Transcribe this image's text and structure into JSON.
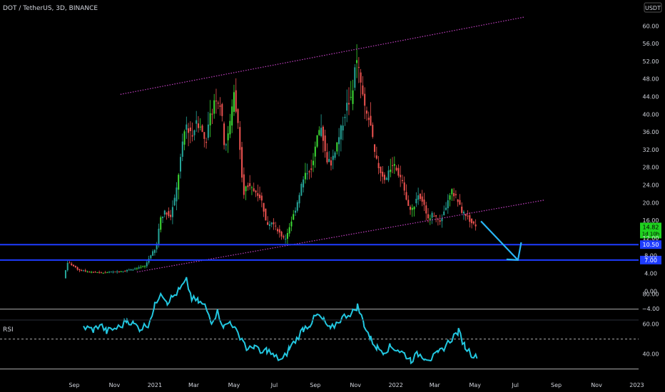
{
  "header": {
    "symbol_title": "DOT / TetherUS, 3D, BINANCE",
    "currency": "USDT"
  },
  "rsi_label": "RSI",
  "colors": {
    "background": "#000000",
    "up": "#26a69a",
    "up_bright": "#3ddc35",
    "down": "#ef5350",
    "channel": "#c040c0",
    "horizontal": "#1e3cff",
    "arrow": "#29b6f6",
    "rsi": "#22c7e0",
    "rsi_band": "#cfcfcf",
    "axis_text": "#d1d4dc"
  },
  "chart_data": {
    "type": "candlestick",
    "symbol": "DOT / TetherUS",
    "interval": "3D",
    "exchange": "BINANCE",
    "price_axis": {
      "range": [
        -6,
        64
      ],
      "ticks": [
        -4,
        0,
        4,
        8,
        12,
        16,
        20,
        24,
        28,
        32,
        36,
        40,
        44,
        48,
        52,
        56,
        60
      ],
      "tick_labels": [
        "−4.00",
        "0.00",
        "4.00",
        "8.00",
        "12.00",
        "16.00",
        "20.00",
        "24.00",
        "28.00",
        "32.00",
        "36.00",
        "40.00",
        "44.00",
        "48.00",
        "52.00",
        "56.00",
        "60.00"
      ]
    },
    "time_axis": {
      "start": "2020-08-19",
      "end": "2023-01-01",
      "ticks": [
        {
          "date": "2020-09-01",
          "label": "Sep"
        },
        {
          "date": "2020-11-01",
          "label": "Nov"
        },
        {
          "date": "2021-01-01",
          "label": "2021"
        },
        {
          "date": "2021-03-01",
          "label": "Mar"
        },
        {
          "date": "2021-05-01",
          "label": "May"
        },
        {
          "date": "2021-07-01",
          "label": "Jul"
        },
        {
          "date": "2021-09-01",
          "label": "Sep"
        },
        {
          "date": "2021-11-01",
          "label": "Nov"
        },
        {
          "date": "2022-01-01",
          "label": "2022"
        },
        {
          "date": "2022-03-01",
          "label": "Mar"
        },
        {
          "date": "2022-05-01",
          "label": "May"
        },
        {
          "date": "2022-07-01",
          "label": "Jul"
        },
        {
          "date": "2022-09-01",
          "label": "Sep"
        },
        {
          "date": "2022-11-01",
          "label": "Nov"
        },
        {
          "date": "2023-01-01",
          "label": "2023"
        }
      ]
    },
    "price_path": [
      [
        "2020-08-19",
        2.9
      ],
      [
        "2020-08-25",
        6.5
      ],
      [
        "2020-09-01",
        5.8
      ],
      [
        "2020-09-10",
        4.8
      ],
      [
        "2020-09-25",
        4.4
      ],
      [
        "2020-10-15",
        4.1
      ],
      [
        "2020-11-01",
        4.3
      ],
      [
        "2020-11-20",
        4.6
      ],
      [
        "2020-12-05",
        5.0
      ],
      [
        "2020-12-20",
        5.6
      ],
      [
        "2020-12-30",
        8.5
      ],
      [
        "2021-01-06",
        9.5
      ],
      [
        "2021-01-12",
        16.5
      ],
      [
        "2021-01-20",
        18.0
      ],
      [
        "2021-01-28",
        17.0
      ],
      [
        "2021-02-05",
        22.0
      ],
      [
        "2021-02-12",
        30.0
      ],
      [
        "2021-02-20",
        38.0
      ],
      [
        "2021-02-28",
        35.0
      ],
      [
        "2021-03-08",
        38.0
      ],
      [
        "2021-03-15",
        37.0
      ],
      [
        "2021-03-22",
        33.5
      ],
      [
        "2021-03-30",
        40.0
      ],
      [
        "2021-04-06",
        44.0
      ],
      [
        "2021-04-14",
        42.0
      ],
      [
        "2021-04-20",
        32.0
      ],
      [
        "2021-04-28",
        38.0
      ],
      [
        "2021-05-04",
        45.0
      ],
      [
        "2021-05-12",
        35.0
      ],
      [
        "2021-05-18",
        22.0
      ],
      [
        "2021-05-24",
        24.0
      ],
      [
        "2021-06-01",
        23.0
      ],
      [
        "2021-06-10",
        22.0
      ],
      [
        "2021-06-16",
        20.0
      ],
      [
        "2021-06-22",
        15.0
      ],
      [
        "2021-06-30",
        15.5
      ],
      [
        "2021-07-08",
        14.0
      ],
      [
        "2021-07-20",
        11.5
      ],
      [
        "2021-07-28",
        15.0
      ],
      [
        "2021-08-06",
        19.0
      ],
      [
        "2021-08-14",
        24.0
      ],
      [
        "2021-08-22",
        27.0
      ],
      [
        "2021-08-30",
        28.0
      ],
      [
        "2021-09-06",
        34.0
      ],
      [
        "2021-09-14",
        37.0
      ],
      [
        "2021-09-20",
        30.0
      ],
      [
        "2021-09-28",
        29.0
      ],
      [
        "2021-10-06",
        33.0
      ],
      [
        "2021-10-14",
        37.0
      ],
      [
        "2021-10-22",
        42.0
      ],
      [
        "2021-10-30",
        44.0
      ],
      [
        "2021-11-04",
        53.0
      ],
      [
        "2021-11-10",
        49.0
      ],
      [
        "2021-11-18",
        41.0
      ],
      [
        "2021-11-26",
        38.0
      ],
      [
        "2021-12-04",
        30.0
      ],
      [
        "2021-12-12",
        27.0
      ],
      [
        "2021-12-20",
        25.0
      ],
      [
        "2021-12-30",
        29.0
      ],
      [
        "2022-01-06",
        27.0
      ],
      [
        "2022-01-14",
        25.0
      ],
      [
        "2022-01-22",
        19.0
      ],
      [
        "2022-01-30",
        18.5
      ],
      [
        "2022-02-06",
        22.0
      ],
      [
        "2022-02-14",
        20.0
      ],
      [
        "2022-02-22",
        16.5
      ],
      [
        "2022-03-02",
        17.5
      ],
      [
        "2022-03-12",
        15.5
      ],
      [
        "2022-03-22",
        19.5
      ],
      [
        "2022-03-30",
        22.5
      ],
      [
        "2022-04-06",
        21.0
      ],
      [
        "2022-04-14",
        18.0
      ],
      [
        "2022-04-22",
        17.0
      ],
      [
        "2022-04-28",
        15.5
      ],
      [
        "2022-05-04",
        14.82
      ]
    ],
    "current_price": {
      "value": 14.82,
      "label": "14.82",
      "countdown": "1d 10h"
    },
    "horizontal_levels": [
      {
        "value": 10.5,
        "label": "10.50"
      },
      {
        "value": 7.0,
        "label": "7.00"
      }
    ],
    "channel_lines": [
      {
        "name": "upper",
        "from": {
          "date": "2020-11-10",
          "price": 44.5
        },
        "to": {
          "date": "2022-07-15",
          "price": 62.0
        },
        "style": "dotted"
      },
      {
        "name": "lower",
        "from": {
          "date": "2020-12-05",
          "price": 4.3
        },
        "to": {
          "date": "2022-08-15",
          "price": 20.6
        },
        "style": "dotted"
      }
    ],
    "projection_arrow": {
      "from": {
        "date": "2022-05-10",
        "price": 15.8
      },
      "to": {
        "date": "2022-07-05",
        "price": 7.0
      },
      "head": {
        "date": "2022-07-10",
        "price": 11.0
      }
    },
    "rsi": {
      "label": "RSI",
      "range": [
        20,
        95
      ],
      "ticks": [
        {
          "value": 80,
          "label": "80.00"
        },
        {
          "value": 60,
          "label": "60.00"
        },
        {
          "value": 40,
          "label": "40.00"
        }
      ],
      "bands": [
        70,
        50,
        30
      ],
      "path": [
        [
          "2020-09-15",
          58
        ],
        [
          "2020-10-01",
          56
        ],
        [
          "2020-10-10",
          60
        ],
        [
          "2020-10-20",
          55
        ],
        [
          "2020-11-01",
          57
        ],
        [
          "2020-11-10",
          58
        ],
        [
          "2020-11-20",
          63
        ],
        [
          "2020-11-30",
          60
        ],
        [
          "2020-12-10",
          57
        ],
        [
          "2020-12-22",
          60
        ],
        [
          "2021-01-01",
          72
        ],
        [
          "2021-01-10",
          82
        ],
        [
          "2021-01-20",
          75
        ],
        [
          "2021-01-28",
          78
        ],
        [
          "2021-02-08",
          83
        ],
        [
          "2021-02-18",
          89
        ],
        [
          "2021-02-26",
          77
        ],
        [
          "2021-03-08",
          75
        ],
        [
          "2021-03-18",
          72
        ],
        [
          "2021-03-28",
          62
        ],
        [
          "2021-04-06",
          68
        ],
        [
          "2021-04-16",
          58
        ],
        [
          "2021-04-26",
          62
        ],
        [
          "2021-05-04",
          55
        ],
        [
          "2021-05-14",
          50
        ],
        [
          "2021-05-22",
          42
        ],
        [
          "2021-06-01",
          46
        ],
        [
          "2021-06-10",
          40
        ],
        [
          "2021-06-20",
          43
        ],
        [
          "2021-07-01",
          38
        ],
        [
          "2021-07-14",
          36
        ],
        [
          "2021-07-24",
          44
        ],
        [
          "2021-08-04",
          50
        ],
        [
          "2021-08-14",
          57
        ],
        [
          "2021-08-24",
          60
        ],
        [
          "2021-09-04",
          66
        ],
        [
          "2021-09-14",
          62
        ],
        [
          "2021-09-24",
          56
        ],
        [
          "2021-10-06",
          62
        ],
        [
          "2021-10-18",
          66
        ],
        [
          "2021-10-28",
          68
        ],
        [
          "2021-11-04",
          72
        ],
        [
          "2021-11-14",
          60
        ],
        [
          "2021-11-24",
          50
        ],
        [
          "2021-12-04",
          44
        ],
        [
          "2021-12-14",
          42
        ],
        [
          "2021-12-24",
          45
        ],
        [
          "2022-01-04",
          43
        ],
        [
          "2022-01-14",
          40
        ],
        [
          "2022-01-24",
          36
        ],
        [
          "2022-02-04",
          40
        ],
        [
          "2022-02-14",
          38
        ],
        [
          "2022-02-24",
          37
        ],
        [
          "2022-03-06",
          40
        ],
        [
          "2022-03-18",
          46
        ],
        [
          "2022-03-30",
          52
        ],
        [
          "2022-04-06",
          55
        ],
        [
          "2022-04-16",
          45
        ],
        [
          "2022-04-26",
          40
        ],
        [
          "2022-05-04",
          37
        ]
      ]
    }
  }
}
